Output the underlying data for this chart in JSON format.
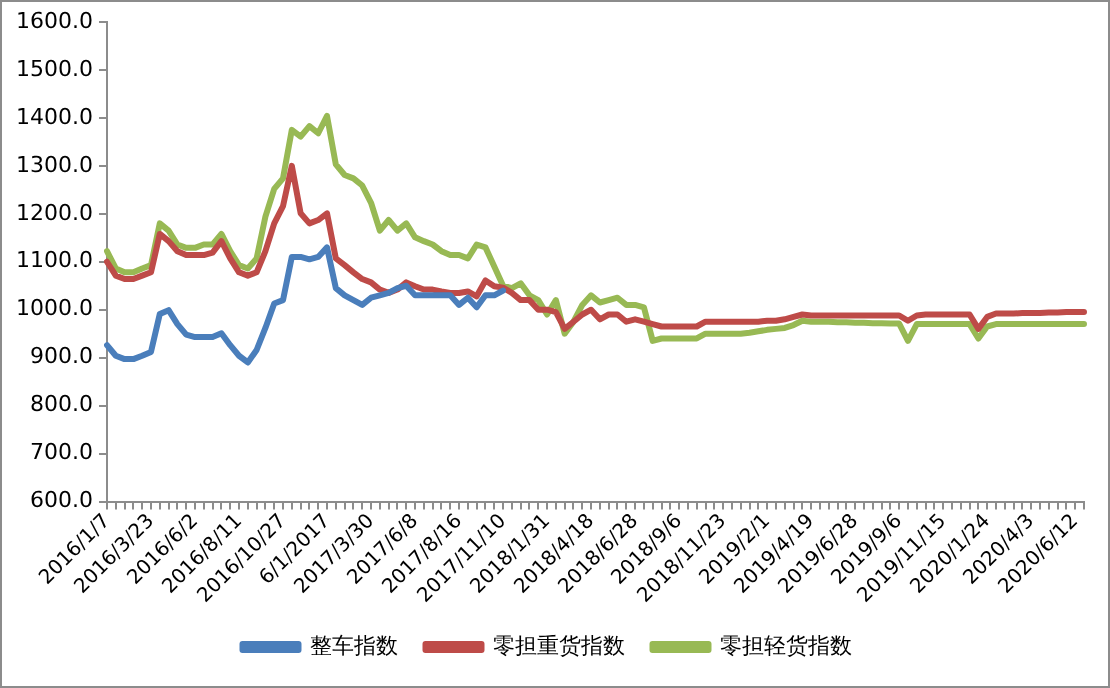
{
  "chart_data": {
    "type": "line",
    "categories": [
      "2016/1/7",
      null,
      null,
      null,
      null,
      "2016/3/23",
      null,
      null,
      null,
      null,
      "2016/6/2",
      null,
      null,
      null,
      null,
      "2016/8/11",
      null,
      null,
      null,
      null,
      "2016/10/27",
      null,
      null,
      null,
      null,
      "6/1/2017",
      null,
      null,
      null,
      null,
      "2017/3/30",
      null,
      null,
      null,
      null,
      "2017/6/8",
      null,
      null,
      null,
      null,
      "2017/8/16",
      null,
      null,
      null,
      null,
      "2017/11/10",
      null,
      null,
      null,
      null,
      "2018/1/31",
      null,
      null,
      null,
      null,
      "2018/4/18",
      null,
      null,
      null,
      null,
      "2018/6/28",
      null,
      null,
      null,
      null,
      "2018/9/6",
      null,
      null,
      null,
      null,
      "2018/11/23",
      null,
      null,
      null,
      null,
      "2019/2/1",
      null,
      null,
      null,
      null,
      "2019/4/19",
      null,
      null,
      null,
      null,
      "2019/6/28",
      null,
      null,
      null,
      null,
      "2019/9/6",
      null,
      null,
      null,
      null,
      "2019/11/15",
      null,
      null,
      null,
      null,
      "2020/1/24",
      null,
      null,
      null,
      null,
      "2020/4/3",
      null,
      null,
      null,
      null,
      "2020/6/12",
      null
    ],
    "series": [
      {
        "name": "整车指数",
        "color": "#4a7ebb",
        "values": [
          926,
          904,
          897,
          897,
          904,
          912,
          991,
          999,
          970,
          948,
          943,
          943,
          943,
          951,
          926,
          904,
          890,
          916,
          962,
          1013,
          1020,
          1110,
          1110,
          1105,
          1110,
          1130,
          1045,
          1030,
          1020,
          1010,
          1025,
          1030,
          1035,
          1045,
          1050,
          1030,
          1030,
          1030,
          1030,
          1030,
          1010,
          1025,
          1005,
          1030,
          1030,
          1040,
          null,
          null,
          null,
          null,
          null,
          null,
          null,
          null,
          null,
          null,
          null,
          null,
          null,
          null,
          null,
          null,
          null,
          null,
          null,
          null,
          null,
          null,
          null,
          null,
          null,
          null,
          null,
          null,
          null,
          null,
          null,
          null,
          null,
          null,
          null,
          null,
          null,
          null,
          null,
          null,
          null,
          null,
          null,
          null,
          null,
          null,
          null,
          null,
          null,
          null,
          null,
          null,
          null,
          null,
          null,
          null,
          null,
          null,
          null,
          null,
          null,
          null,
          null,
          null,
          null,
          null
        ]
      },
      {
        "name": "零担重货指数",
        "color": "#be4b48",
        "values": [
          1100,
          1071,
          1064,
          1064,
          1071,
          1078,
          1158,
          1143,
          1122,
          1114,
          1114,
          1114,
          1119,
          1143,
          1107,
          1078,
          1071,
          1078,
          1122,
          1180,
          1216,
          1300,
          1201,
          1180,
          1187,
          1201,
          1107,
          1093,
          1078,
          1064,
          1057,
          1042,
          1035,
          1042,
          1057,
          1049,
          1042,
          1042,
          1038,
          1035,
          1035,
          1038,
          1028,
          1061,
          1049,
          1046,
          1035,
          1020,
          1020,
          1000,
          1000,
          995,
          960,
          975,
          990,
          1000,
          980,
          990,
          990,
          975,
          980,
          975,
          970,
          965,
          965,
          965,
          965,
          965,
          975,
          975,
          975,
          975,
          975,
          975,
          975,
          977,
          977,
          980,
          985,
          990,
          988,
          988,
          988,
          988,
          988,
          988,
          988,
          988,
          988,
          988,
          988,
          977,
          988,
          990,
          990,
          990,
          990,
          990,
          990,
          960,
          985,
          992,
          992,
          992,
          993,
          993,
          993,
          994,
          994,
          995,
          995,
          995
        ]
      },
      {
        "name": "零担轻货指数",
        "color": "#98b954",
        "values": [
          1122,
          1086,
          1078,
          1078,
          1086,
          1093,
          1180,
          1165,
          1136,
          1129,
          1129,
          1136,
          1136,
          1158,
          1122,
          1093,
          1086,
          1107,
          1194,
          1252,
          1274,
          1375,
          1361,
          1383,
          1368,
          1404,
          1303,
          1281,
          1274,
          1259,
          1223,
          1165,
          1187,
          1165,
          1180,
          1151,
          1143,
          1136,
          1122,
          1114,
          1114,
          1107,
          1136,
          1130,
          1090,
          1050,
          1045,
          1055,
          1030,
          1020,
          990,
          1020,
          950,
          975,
          1010,
          1030,
          1015,
          1020,
          1025,
          1010,
          1010,
          1005,
          935,
          940,
          940,
          940,
          940,
          940,
          950,
          950,
          950,
          950,
          950,
          952,
          955,
          958,
          960,
          962,
          968,
          977,
          975,
          975,
          975,
          974,
          974,
          973,
          973,
          972,
          972,
          971,
          971,
          935,
          970,
          970,
          970,
          970,
          970,
          970,
          970,
          940,
          965,
          970,
          970,
          970,
          970,
          970,
          970,
          970,
          970,
          970,
          970,
          970
        ]
      }
    ],
    "ylim": [
      600,
      1600
    ],
    "yticks": [
      {
        "value": 600,
        "label": "600.0"
      },
      {
        "value": 700,
        "label": "700.0"
      },
      {
        "value": 800,
        "label": "800.0"
      },
      {
        "value": 900,
        "label": "900.0"
      },
      {
        "value": 1000,
        "label": "1000.0"
      },
      {
        "value": 1100,
        "label": "1100.0"
      },
      {
        "value": 1200,
        "label": "1200.0"
      },
      {
        "value": 1300,
        "label": "1300.0"
      },
      {
        "value": 1400,
        "label": "1400.0"
      },
      {
        "value": 1500,
        "label": "1500.0"
      },
      {
        "value": 1600,
        "label": "1600.0"
      }
    ],
    "grid": false,
    "legend": "bottom",
    "marker": "none",
    "line_style": "solid"
  }
}
